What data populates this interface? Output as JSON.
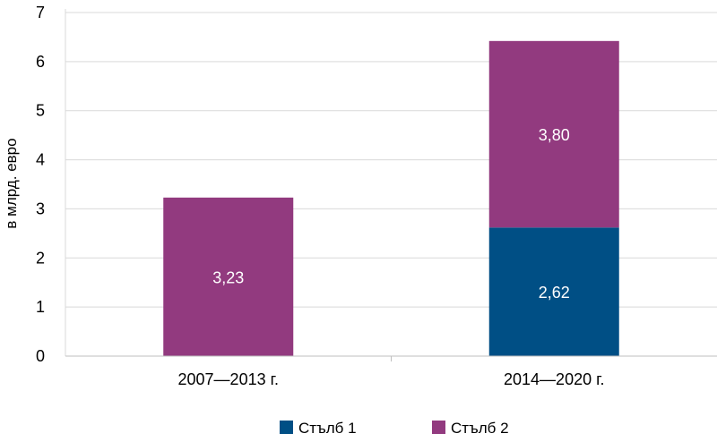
{
  "chart_data": {
    "type": "bar",
    "stacked": true,
    "categories": [
      "2007—2013 г.",
      "2014—2020 г."
    ],
    "series": [
      {
        "name": "Стълб 1",
        "values": [
          0,
          2.62
        ],
        "labels": [
          "",
          "2,62"
        ],
        "color": "#004f85"
      },
      {
        "name": "Стълб 2",
        "values": [
          3.23,
          3.8
        ],
        "labels": [
          "3,23",
          "3,80"
        ],
        "color": "#923a7f"
      }
    ],
    "ylabel": "в млрд. евро",
    "ylim": [
      0,
      7
    ],
    "yticks": [
      "0",
      "1",
      "2",
      "3",
      "4",
      "5",
      "6",
      "7"
    ],
    "grid": true,
    "legend": "bottom"
  }
}
